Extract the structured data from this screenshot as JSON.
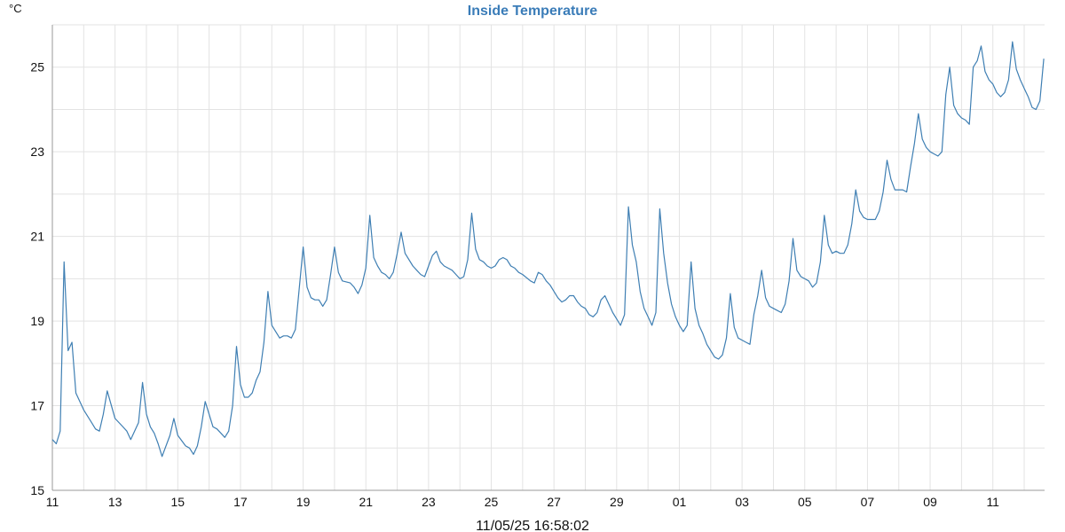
{
  "chart_data": {
    "type": "line",
    "title": "Inside Temperature",
    "ylabel": "°C",
    "xlabel": "",
    "timestamp": "11/05/25 16:58:02",
    "ylim": [
      15,
      26
    ],
    "xlim": [
      0,
      31.65
    ],
    "y_ticks": [
      15,
      17,
      19,
      21,
      23,
      25
    ],
    "y_tick_labels": [
      "15",
      "17",
      "19",
      "21",
      "23",
      "25"
    ],
    "x_ticks": [
      0,
      2,
      4,
      6,
      8,
      10,
      12,
      14,
      16,
      18,
      20,
      22,
      24,
      26,
      28,
      30
    ],
    "x_tick_labels": [
      "11",
      "13",
      "15",
      "17",
      "19",
      "21",
      "23",
      "25",
      "27",
      "29",
      "01",
      "03",
      "05",
      "07",
      "09",
      "11"
    ],
    "grid": true,
    "legend": "none",
    "colors": {
      "line": "#3f7fb3",
      "title": "#3a7cb8",
      "grid": "#e3e3e3",
      "axis": "#9a9a9a"
    },
    "series": [
      {
        "x": [
          0,
          0.125,
          0.25,
          0.375,
          0.5,
          0.625,
          0.75,
          1.0,
          1.25,
          1.375,
          1.5,
          1.625,
          1.75,
          2.0,
          2.25,
          2.375,
          2.5,
          2.75,
          2.875,
          3.0,
          3.125,
          3.25,
          3.375,
          3.5,
          3.75,
          3.875,
          4.0,
          4.25,
          4.375,
          4.5,
          4.625,
          4.75,
          4.875,
          5.125,
          5.25,
          5.5,
          5.625,
          5.75,
          5.875,
          6.0,
          6.125,
          6.25,
          6.375,
          6.5,
          6.625,
          6.75,
          6.875,
          7.0,
          7.25,
          7.375,
          7.5,
          7.625,
          7.75,
          8.0,
          8.125,
          8.25,
          8.375,
          8.5,
          8.625,
          8.75,
          8.875,
          9.0,
          9.125,
          9.25,
          9.5,
          9.625,
          9.75,
          9.875,
          10.0,
          10.125,
          10.25,
          10.375,
          10.5,
          10.625,
          10.75,
          10.875,
          11.0,
          11.125,
          11.25,
          11.5,
          11.625,
          11.75,
          11.875,
          12.0,
          12.125,
          12.25,
          12.375,
          12.5,
          12.75,
          12.875,
          13.0,
          13.125,
          13.25,
          13.375,
          13.5,
          13.625,
          13.75,
          13.875,
          14.0,
          14.125,
          14.25,
          14.375,
          14.5,
          14.625,
          14.75,
          14.875,
          15.0,
          15.25,
          15.375,
          15.5,
          15.625,
          15.75,
          15.875,
          16.0,
          16.125,
          16.25,
          16.375,
          16.5,
          16.625,
          16.75,
          16.875,
          17.0,
          17.125,
          17.25,
          17.375,
          17.5,
          17.625,
          17.75,
          17.875,
          18.0,
          18.125,
          18.25,
          18.375,
          18.5,
          18.625,
          18.75,
          18.875,
          19.0,
          19.125,
          19.25,
          19.375,
          19.5,
          19.625,
          19.75,
          19.875,
          20.0,
          20.125,
          20.25,
          20.375,
          20.5,
          20.625,
          20.75,
          20.875,
          21.0,
          21.125,
          21.25,
          21.375,
          21.5,
          21.625,
          21.75,
          21.875,
          22.0,
          22.125,
          22.25,
          22.375,
          22.5,
          22.625,
          22.75,
          22.875,
          23.0,
          23.125,
          23.25,
          23.375,
          23.5,
          23.625,
          23.75,
          23.875,
          24.0,
          24.125,
          24.25,
          24.375,
          24.5,
          24.625,
          24.75,
          24.875,
          25.0,
          25.125,
          25.25,
          25.375,
          25.5,
          25.625,
          25.75,
          25.875,
          26.0,
          26.125,
          26.25,
          26.375,
          26.5,
          26.625,
          26.75,
          26.875,
          27.0,
          27.125,
          27.25,
          27.375,
          27.5,
          27.625,
          27.75,
          27.875,
          28.0,
          28.125,
          28.25,
          28.375,
          28.5,
          28.625,
          28.75,
          28.875,
          29.0,
          29.125,
          29.25,
          29.375,
          29.5,
          29.625,
          29.75,
          29.875,
          30.0,
          30.125,
          30.25,
          30.375,
          30.5,
          30.625,
          30.75,
          30.875,
          31.0,
          31.125,
          31.25,
          31.375,
          31.5,
          31.625
        ],
        "values": [
          16.2,
          16.1,
          16.4,
          20.4,
          18.3,
          18.5,
          17.3,
          16.9,
          16.6,
          16.45,
          16.4,
          16.8,
          17.35,
          16.7,
          16.5,
          16.4,
          16.2,
          16.6,
          17.55,
          16.8,
          16.5,
          16.35,
          16.1,
          15.8,
          16.3,
          16.7,
          16.3,
          16.05,
          16.0,
          15.85,
          16.05,
          16.5,
          17.1,
          16.5,
          16.45,
          16.25,
          16.4,
          17.0,
          18.4,
          17.5,
          17.2,
          17.2,
          17.3,
          17.6,
          17.8,
          18.5,
          19.7,
          18.9,
          18.6,
          18.65,
          18.65,
          18.6,
          18.8,
          20.75,
          19.8,
          19.55,
          19.5,
          19.5,
          19.35,
          19.5,
          20.1,
          20.75,
          20.15,
          19.95,
          19.9,
          19.8,
          19.65,
          19.85,
          20.25,
          21.5,
          20.5,
          20.3,
          20.15,
          20.1,
          20.0,
          20.15,
          20.6,
          21.1,
          20.6,
          20.3,
          20.2,
          20.1,
          20.05,
          20.3,
          20.55,
          20.65,
          20.4,
          20.3,
          20.2,
          20.1,
          20.0,
          20.05,
          20.45,
          21.55,
          20.7,
          20.45,
          20.4,
          20.3,
          20.25,
          20.3,
          20.45,
          20.5,
          20.45,
          20.3,
          20.25,
          20.15,
          20.1,
          19.95,
          19.9,
          20.15,
          20.1,
          19.95,
          19.85,
          19.7,
          19.55,
          19.45,
          19.5,
          19.6,
          19.6,
          19.45,
          19.35,
          19.3,
          19.15,
          19.1,
          19.2,
          19.5,
          19.6,
          19.4,
          19.2,
          19.05,
          18.9,
          19.15,
          21.7,
          20.8,
          20.4,
          19.7,
          19.3,
          19.1,
          18.9,
          19.2,
          21.65,
          20.6,
          19.9,
          19.4,
          19.1,
          18.9,
          18.75,
          18.9,
          20.4,
          19.3,
          18.9,
          18.7,
          18.45,
          18.3,
          18.15,
          18.1,
          18.2,
          18.6,
          19.65,
          18.85,
          18.6,
          18.55,
          18.5,
          18.45,
          19.15,
          19.6,
          20.2,
          19.55,
          19.35,
          19.3,
          19.25,
          19.2,
          19.4,
          19.95,
          20.95,
          20.2,
          20.05,
          20.0,
          19.95,
          19.8,
          19.9,
          20.4,
          21.5,
          20.8,
          20.6,
          20.65,
          20.6,
          20.6,
          20.8,
          21.3,
          22.1,
          21.6,
          21.45,
          21.4,
          21.4,
          21.4,
          21.6,
          22.05,
          22.8,
          22.35,
          22.1,
          22.1,
          22.1,
          22.05,
          22.65,
          23.2,
          23.9,
          23.3,
          23.1,
          23.0,
          22.95,
          22.9,
          23.0,
          24.35,
          25.0,
          24.1,
          23.9,
          23.8,
          23.75,
          23.65,
          25.0,
          25.15,
          25.5,
          24.9,
          24.7,
          24.6,
          24.4,
          24.3,
          24.4,
          24.7,
          25.6,
          24.95,
          24.7,
          24.5,
          24.3,
          24.05,
          24.0,
          24.2,
          25.2
        ]
      }
    ]
  }
}
